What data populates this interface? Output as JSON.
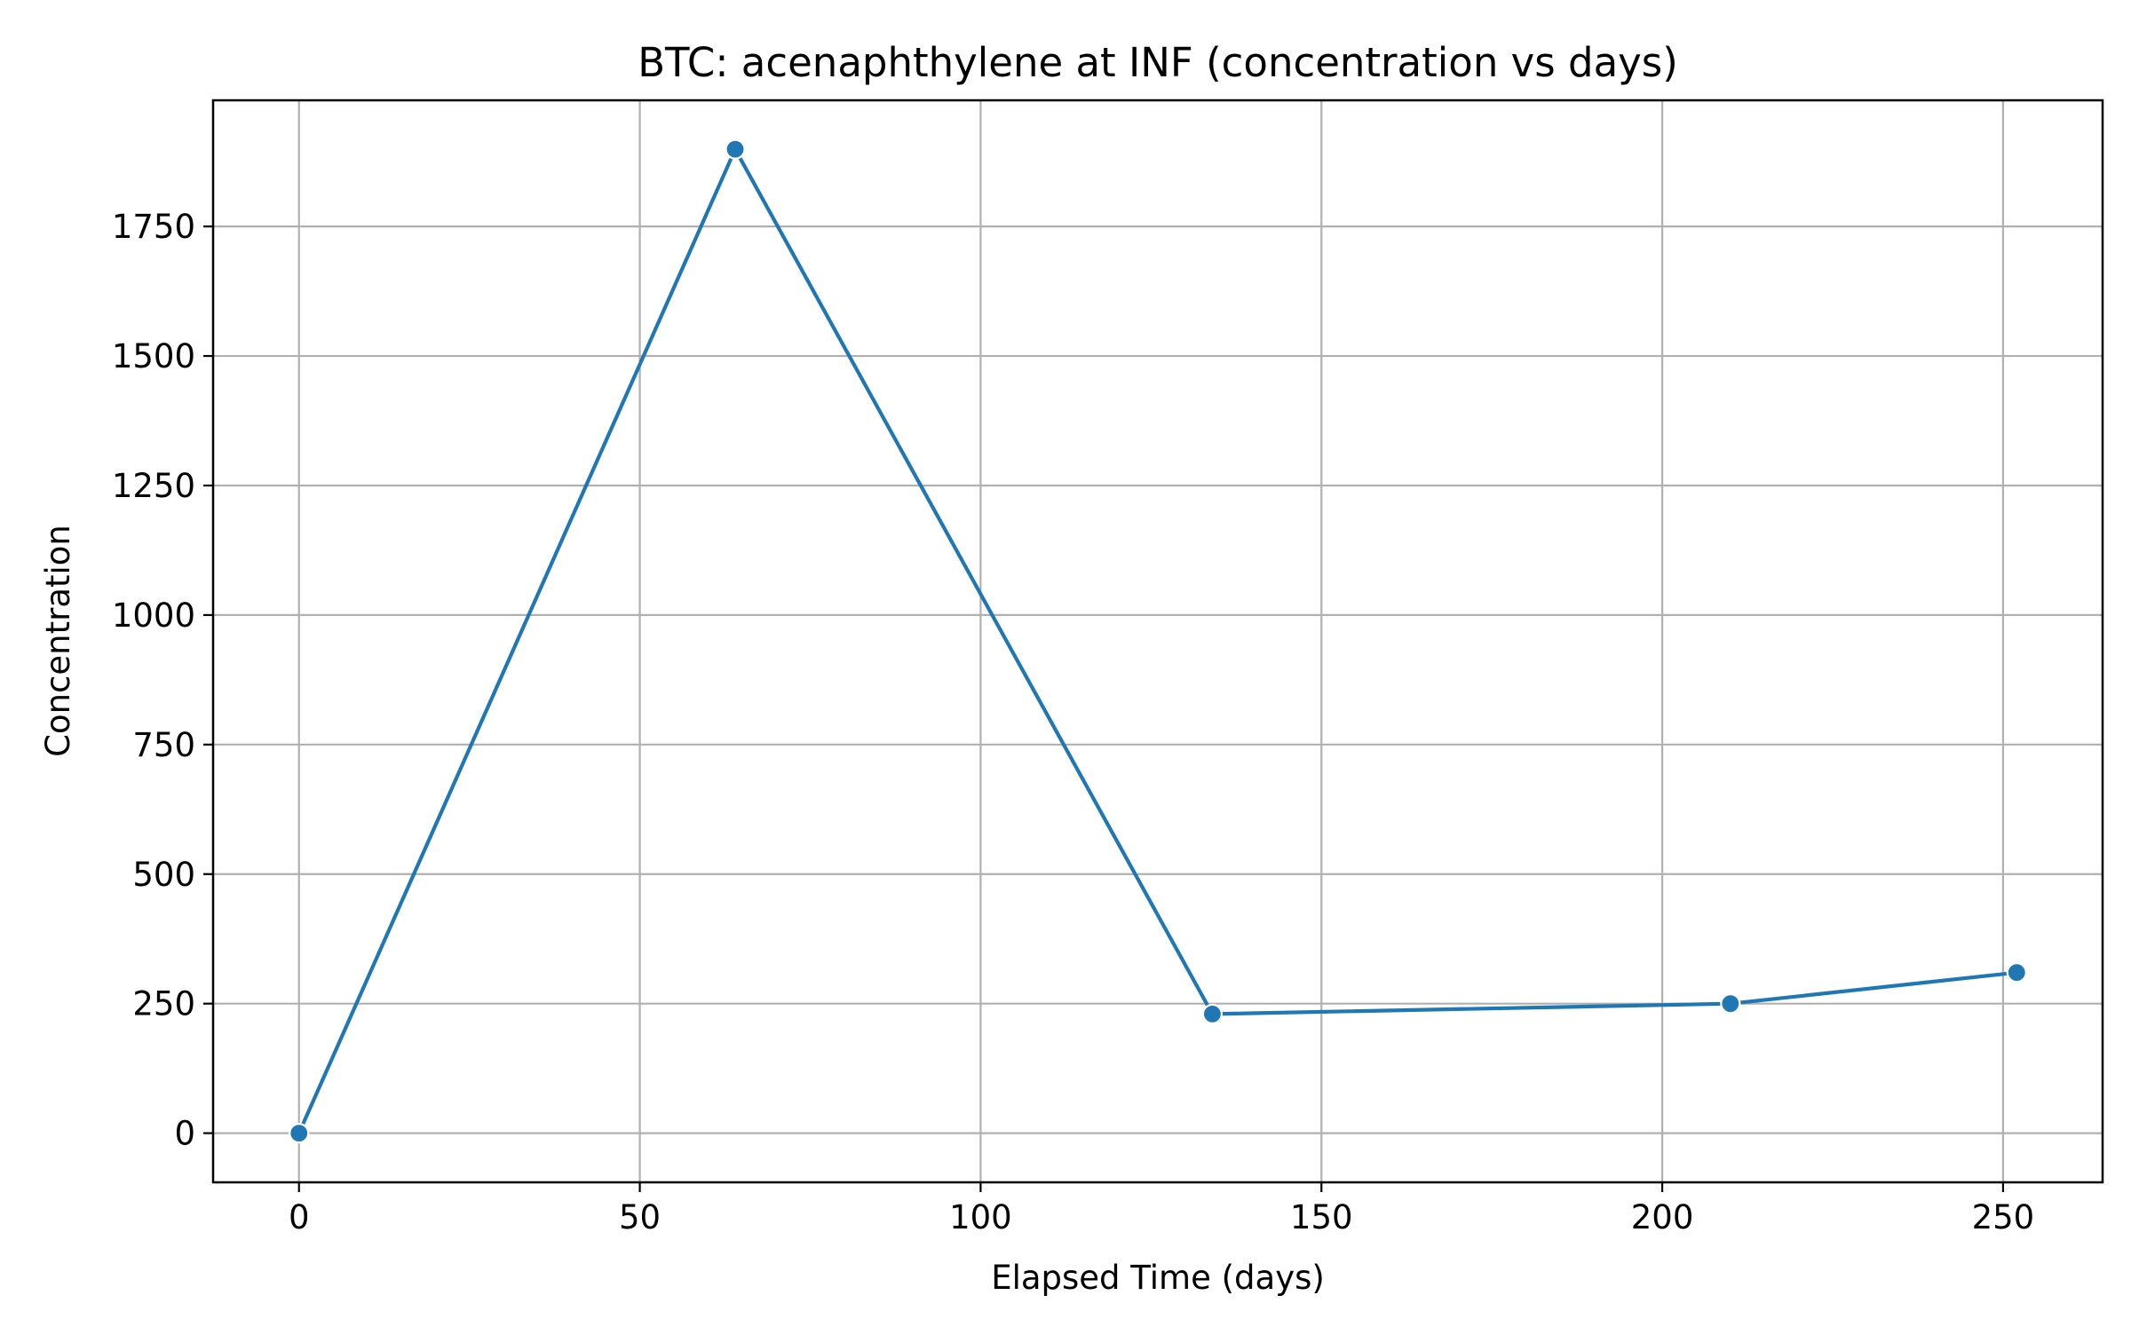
{
  "chart_data": {
    "type": "line",
    "title": "BTC: acenaphthylene at INF (concentration vs days)",
    "xlabel": "Elapsed Time (days)",
    "ylabel": "Concentration",
    "xlim": [
      -12.6,
      264.6
    ],
    "ylim": [
      -94.9,
      1993.5
    ],
    "xticks": [
      0,
      50,
      100,
      150,
      200,
      250
    ],
    "yticks": [
      0,
      250,
      500,
      750,
      1000,
      1250,
      1500,
      1750
    ],
    "grid": true,
    "series": [
      {
        "color": "#1f77b4",
        "marker": "circle",
        "points": [
          {
            "x": 0,
            "y": 0
          },
          {
            "x": 64,
            "y": 1899
          },
          {
            "x": 134,
            "y": 230
          },
          {
            "x": 210,
            "y": 250
          },
          {
            "x": 252,
            "y": 310
          }
        ]
      }
    ]
  },
  "colors": {
    "line": "#1f77b4",
    "grid": "#b0b0b0",
    "marker_edge": "#ffffff",
    "frame": "#000000"
  }
}
